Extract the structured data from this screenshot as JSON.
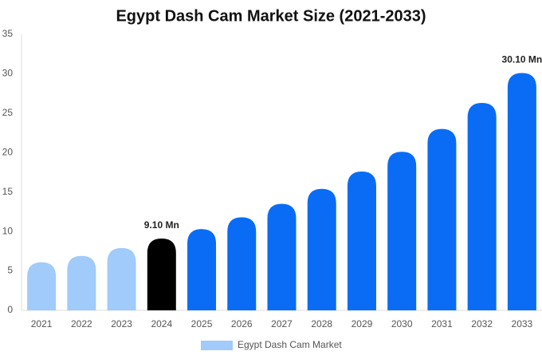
{
  "chart_data": {
    "type": "bar",
    "title": "Egypt Dash Cam Market Size (2021-2033)",
    "categories": [
      "2021",
      "2022",
      "2023",
      "2024",
      "2025",
      "2026",
      "2027",
      "2028",
      "2029",
      "2030",
      "2031",
      "2032",
      "2033"
    ],
    "series": [
      {
        "name": "Egypt Dash Cam Market",
        "color": "#a0cbfa",
        "values": [
          6.1,
          6.9,
          7.9,
          9.1,
          10.3,
          11.8,
          13.5,
          15.4,
          17.6,
          20.1,
          23.0,
          26.3,
          30.1
        ],
        "colors": [
          "#a0cbfa",
          "#a0cbfa",
          "#a0cbfa",
          "#000000",
          "#0a6cf5",
          "#0a6cf5",
          "#0a6cf5",
          "#0a6cf5",
          "#0a6cf5",
          "#0a6cf5",
          "#0a6cf5",
          "#0a6cf5",
          "#0a6cf5"
        ],
        "value_labels": [
          null,
          null,
          null,
          "9.10 Mn",
          null,
          null,
          null,
          null,
          null,
          null,
          null,
          null,
          "30.10 Mn"
        ]
      }
    ],
    "ylim": [
      0,
      35
    ],
    "yticks": [
      0,
      5,
      10,
      15,
      20,
      25,
      30,
      35
    ],
    "grid": false
  }
}
